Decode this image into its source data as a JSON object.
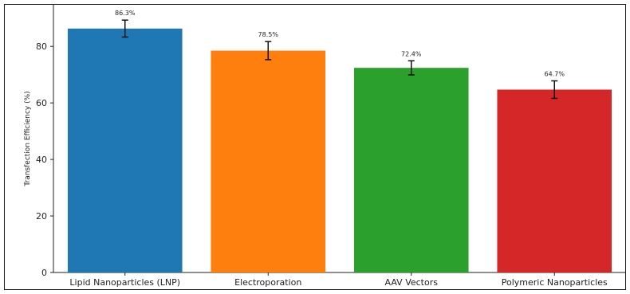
{
  "chart_data": {
    "type": "bar",
    "title": "",
    "xlabel": "",
    "ylabel": "Transfection Efficiency (%)",
    "categories": [
      "Lipid Nanoparticles (LNP)",
      "Electroporation",
      "AAV Vectors",
      "Polymeric Nanoparticles"
    ],
    "values": [
      86.3,
      78.5,
      72.4,
      64.7
    ],
    "value_labels": [
      "86.3%",
      "78.5%",
      "72.4%",
      "64.7%"
    ],
    "errors": [
      3.0,
      3.2,
      2.5,
      3.1
    ],
    "colors": [
      "#1f77b4",
      "#ff7f0e",
      "#2ca02c",
      "#d62728"
    ],
    "ylim": [
      0,
      95
    ],
    "yticks": [
      0,
      20,
      40,
      60,
      80
    ],
    "grid": false,
    "legend": "none"
  }
}
